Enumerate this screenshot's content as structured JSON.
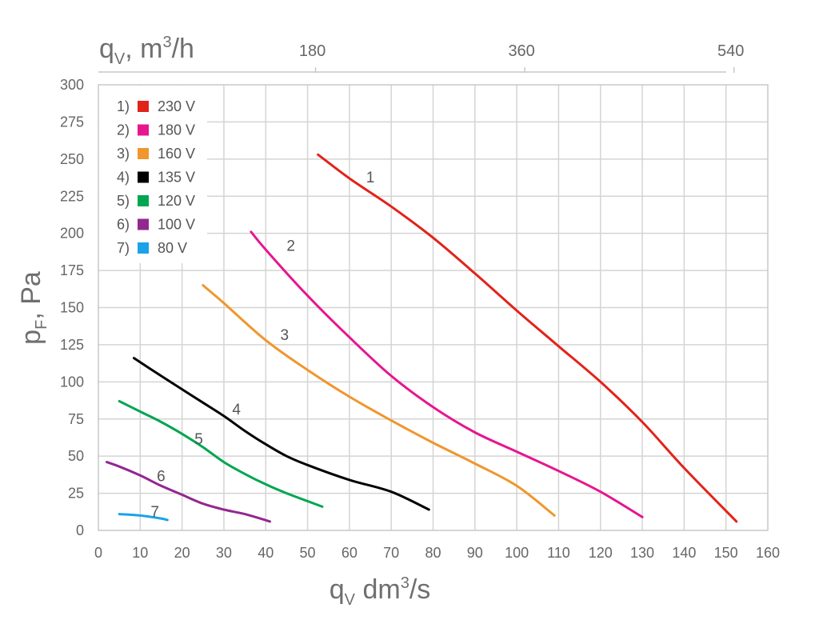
{
  "chart_data": {
    "type": "line",
    "x_axis": {
      "title_main": "q",
      "title_sub": "V",
      "title_unit": " dm",
      "title_sup": "3",
      "title_tail": "/s",
      "xlim": [
        0,
        160
      ],
      "ticks": [
        0,
        10,
        20,
        30,
        40,
        50,
        60,
        70,
        80,
        90,
        100,
        110,
        120,
        130,
        140,
        150,
        160
      ]
    },
    "x2_axis": {
      "title_main": "q",
      "title_sub": "V",
      "title_unit": ", m",
      "title_sup": "3",
      "title_tail": "/h",
      "ticks": [
        {
          "label": "180",
          "value": 50
        },
        {
          "label": "360",
          "value": 100
        },
        {
          "label": "540",
          "value": 150
        }
      ]
    },
    "y_axis": {
      "title_main": "p",
      "title_sub": "F",
      "title_tail": ", Pa",
      "ylim": [
        0,
        300
      ],
      "ticks": [
        0,
        25,
        50,
        75,
        100,
        125,
        150,
        175,
        200,
        225,
        250,
        275,
        300
      ]
    },
    "grid": true,
    "legend_position": "top-left",
    "series": [
      {
        "id": "1",
        "number": "1)",
        "name": "230 V",
        "color": "#e2231a",
        "label": "1",
        "label_at": [
          65,
          238
        ],
        "points": [
          [
            52.5,
            253
          ],
          [
            60,
            237
          ],
          [
            70,
            218
          ],
          [
            80,
            197
          ],
          [
            90,
            173
          ],
          [
            100,
            148
          ],
          [
            110,
            124
          ],
          [
            120,
            100
          ],
          [
            130,
            73
          ],
          [
            140,
            42
          ],
          [
            152.5,
            6
          ]
        ]
      },
      {
        "id": "2",
        "number": "2)",
        "name": "180 V",
        "color": "#e6168e",
        "label": "2",
        "label_at": [
          46,
          192
        ],
        "points": [
          [
            36.5,
            201
          ],
          [
            40,
            189
          ],
          [
            50,
            158
          ],
          [
            60,
            130
          ],
          [
            70,
            104
          ],
          [
            80,
            83
          ],
          [
            90,
            66
          ],
          [
            100,
            53
          ],
          [
            110,
            40
          ],
          [
            120,
            26
          ],
          [
            130,
            9
          ]
        ]
      },
      {
        "id": "3",
        "number": "3)",
        "name": "160 V",
        "color": "#f0962d",
        "label": "3",
        "label_at": [
          44.5,
          132
        ],
        "points": [
          [
            25,
            165
          ],
          [
            30,
            153
          ],
          [
            40,
            128
          ],
          [
            50,
            108
          ],
          [
            60,
            90
          ],
          [
            70,
            74
          ],
          [
            80,
            59
          ],
          [
            90,
            45
          ],
          [
            100,
            30
          ],
          [
            109,
            10
          ]
        ]
      },
      {
        "id": "4",
        "number": "4)",
        "name": "135 V",
        "color": "#000000",
        "label": "4",
        "label_at": [
          33,
          82
        ],
        "points": [
          [
            8.5,
            116
          ],
          [
            15,
            104
          ],
          [
            20,
            95
          ],
          [
            25,
            86
          ],
          [
            30,
            77
          ],
          [
            35,
            67
          ],
          [
            40,
            58
          ],
          [
            45,
            50
          ],
          [
            50,
            44
          ],
          [
            60,
            34
          ],
          [
            70,
            26
          ],
          [
            79,
            14
          ]
        ]
      },
      {
        "id": "5",
        "number": "5)",
        "name": "120 V",
        "color": "#00a651",
        "label": "5",
        "label_at": [
          24,
          62
        ],
        "points": [
          [
            5,
            87
          ],
          [
            10,
            80
          ],
          [
            15,
            73
          ],
          [
            20,
            65
          ],
          [
            25,
            56
          ],
          [
            30,
            46
          ],
          [
            35,
            38
          ],
          [
            40,
            31
          ],
          [
            45,
            25
          ],
          [
            53.5,
            16
          ]
        ]
      },
      {
        "id": "6",
        "number": "6)",
        "name": "100 V",
        "color": "#92278f",
        "label": "6",
        "label_at": [
          15,
          37
        ],
        "points": [
          [
            2,
            46
          ],
          [
            5,
            43
          ],
          [
            10,
            37
          ],
          [
            15,
            30
          ],
          [
            20,
            24
          ],
          [
            25,
            18
          ],
          [
            30,
            14
          ],
          [
            35,
            11
          ],
          [
            41,
            6
          ]
        ]
      },
      {
        "id": "7",
        "number": "7)",
        "name": "80 V",
        "color": "#1aa3e8",
        "label": "7",
        "label_at": [
          13.5,
          13
        ],
        "points": [
          [
            5,
            11
          ],
          [
            10,
            10
          ],
          [
            15,
            8
          ],
          [
            16.5,
            7
          ]
        ]
      }
    ]
  }
}
